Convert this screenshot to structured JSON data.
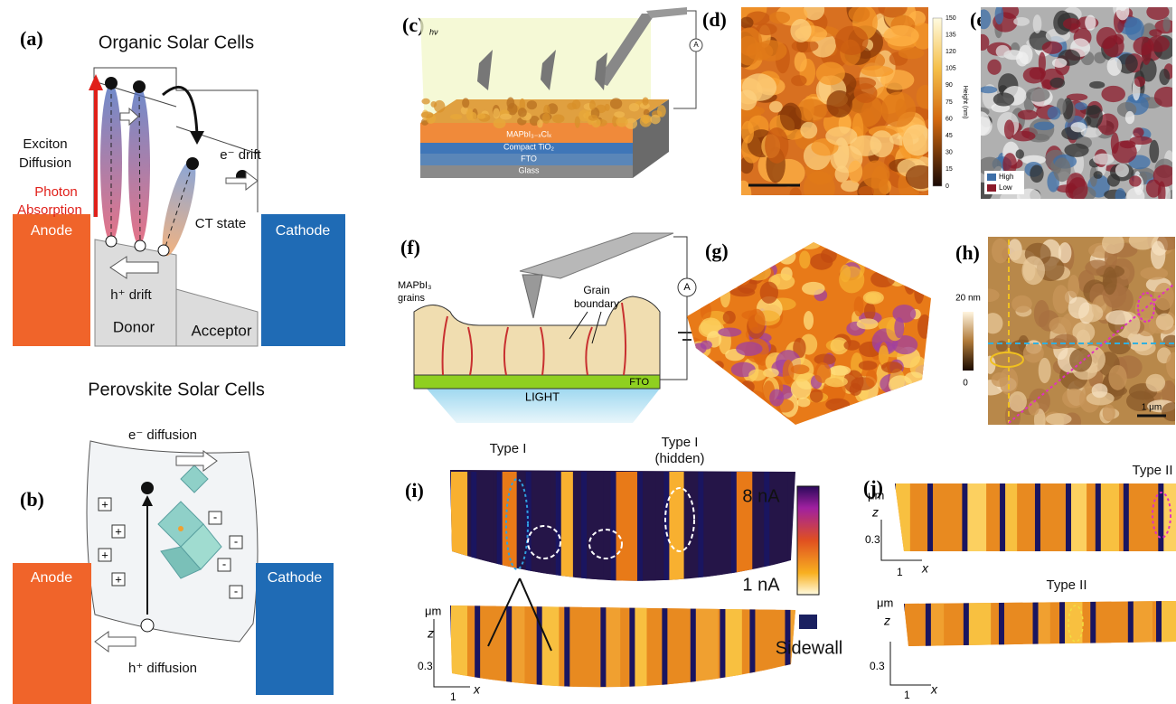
{
  "panels": {
    "a": {
      "label": "(a)",
      "title": "Organic Solar Cells",
      "exciton": "Exciton",
      "diffusion": "Diffusion",
      "photon": "Photon",
      "absorption": "Absorption",
      "e_drift": "e⁻ drift",
      "ct_state": "CT state",
      "anode": "Anode",
      "cathode": "Cathode",
      "h_drift": "h⁺ drift",
      "donor": "Donor",
      "acceptor": "Acceptor"
    },
    "perovskite_title": "Perovskite Solar Cells",
    "b": {
      "label": "(b)",
      "e_diffusion": "e⁻ diffusion",
      "h_diffusion": "h⁺ diffusion",
      "anode": "Anode",
      "cathode": "Cathode",
      "plus": "+",
      "minus": "-"
    },
    "c": {
      "label": "(c)",
      "light": "hν",
      "layer1": "MAPbI₃₋ₓClₓ",
      "layer2": "Compact TiO₂",
      "layer3": "FTO",
      "layer4": "Glass",
      "meter": "A"
    },
    "d": {
      "label": "(d)",
      "colorbar_ticks": [
        "150",
        "135",
        "120",
        "105",
        "90",
        "75",
        "60",
        "45",
        "30",
        "15",
        "0"
      ],
      "colorbar_title": "Height (nm)"
    },
    "e": {
      "label": "(e)",
      "legend_high": "High",
      "legend_low": "Low"
    },
    "f": {
      "label": "(f)",
      "grains_1": "MAPbI₃",
      "grains_2": "grains",
      "boundary_1": "Grain",
      "boundary_2": "boundary",
      "fto": "FTO",
      "light": "LIGHT",
      "meter": "A"
    },
    "g": {
      "label": "(g)"
    },
    "h": {
      "label": "(h)",
      "colorbar_max": "20 nm",
      "colorbar_min": "0",
      "scale": "1 μm"
    },
    "i": {
      "label": "(i)",
      "type1": "Type I",
      "type1_hidden_1": "Type I",
      "type1_hidden_2": "(hidden)",
      "max": "8 nA",
      "min": "1 nA",
      "sidewall": "Sidewall",
      "unit": "μm",
      "z": "z",
      "z_tick": "0.3",
      "x_tick": "1",
      "x": "x"
    },
    "j": {
      "label": "(j)",
      "unit": "μm",
      "z": "z",
      "z_tick": "0.3",
      "x_tick": "1",
      "x": "x",
      "type2": "Type II"
    }
  }
}
